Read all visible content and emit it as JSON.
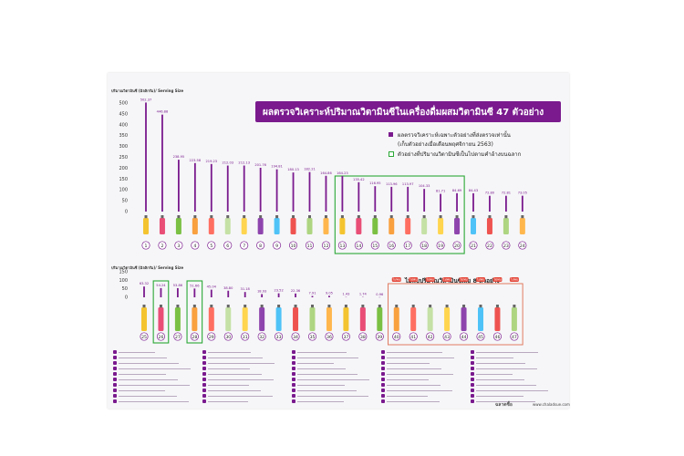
{
  "chart_data": [
    {
      "type": "bar",
      "ylabel": "ปริมาณวิตามินซี (มิลลิกรัม)/ Serving Size",
      "ylim": [
        0,
        500
      ],
      "yticks": [
        0,
        50,
        100,
        150,
        200,
        250,
        300,
        350,
        400,
        450,
        500
      ],
      "categories": [
        "1",
        "2",
        "3",
        "4",
        "5",
        "6",
        "7",
        "8",
        "9",
        "10",
        "11",
        "12",
        "13",
        "14",
        "15",
        "16",
        "17",
        "18",
        "19",
        "20",
        "21",
        "22",
        "23",
        "24"
      ],
      "values": [
        502.37,
        446.88,
        238.95,
        223.58,
        219.23,
        212.03,
        212.13,
        201.76,
        194.81,
        180.13,
        182.21,
        164.86,
        164.23,
        135.42,
        116.95,
        113.96,
        113.97,
        104.33,
        81.71,
        84.69,
        84.43,
        72.8,
        72.81,
        73.05
      ],
      "value_labels": [
        "502.37",
        "446.88",
        "238.95",
        "223.58",
        "219.23",
        "212.03",
        "212.13",
        "201.76",
        "194.81",
        "180.13",
        "182.21",
        "164.86",
        "164.23",
        "135.42",
        "116.95",
        "113.96",
        "113.97",
        "104.33",
        "81.71",
        "84.69",
        "84.43",
        "72.80",
        "72.81",
        "73.05"
      ],
      "highlighted": [
        "13",
        "14",
        "15",
        "16",
        "17",
        "18",
        "19",
        "20"
      ]
    },
    {
      "type": "bar",
      "ylabel": "ปริมาณวิตามินซี (มิลลิกรัม)/ Serving Size",
      "ylim": [
        0,
        150
      ],
      "yticks": [
        0,
        50,
        100,
        150
      ],
      "categories": [
        "25",
        "26",
        "27",
        "28",
        "29",
        "30",
        "31",
        "32",
        "33",
        "34",
        "35",
        "36",
        "37",
        "38",
        "39",
        "40",
        "41",
        "42",
        "43",
        "44",
        "45",
        "46",
        "47"
      ],
      "values": [
        63.32,
        54.24,
        53.86,
        51.66,
        45.04,
        38.8,
        31.18,
        18.93,
        23.52,
        22.36,
        7.91,
        9.05,
        1.43,
        1.74,
        0.96,
        0,
        0,
        0,
        0,
        0,
        0,
        0,
        0
      ],
      "value_labels": [
        "63.32",
        "54.24",
        "53.86",
        "51.66",
        "45.04",
        "38.80",
        "31.18",
        "18.93",
        "23.52",
        "22.36",
        "7.91",
        "9.05",
        "1.43",
        "1.74",
        "0.96",
        "ไม่พบ",
        "ไม่พบ",
        "ไม่พบ",
        "ไม่พบ",
        "ไม่พบ",
        "ไม่พบ",
        "ไม่พบ",
        "ไม่พบ"
      ],
      "highlighted": [
        "26",
        "28"
      ]
    }
  ],
  "header": {
    "ylabel_top": "ปริมาณวิตามินซี (มิลลิกรัม)/ Serving Size",
    "ylabel_bottom": "ปริมาณวิตามินซี (มิลลิกรัม)/ Serving Size",
    "title": "ผลตรวจวิเคราะห์ปริมาณวิตามินซีในเครื่องดื่มผสมวิตามินซี 47 ตัวอย่าง"
  },
  "legend": {
    "item1_line1": "ผลตรวจวิเคราะห์เฉพาะตัวอย่างที่ส่งตรวจเท่านั้น",
    "item1_line2": "(เก็บตัวอย่างเมื่อเดือนพฤศจิกายน 2563)",
    "item2": "ตัวอย่างที่ปริมาณวิตามินซีเป็นไปตามคำอ้างบนฉลาก"
  },
  "no_vitamin_title": "ไม่พบปริมาณวิตามินซีเลย 8 ตัวอย่าง",
  "footer": {
    "brand": "ฉลาดซื้อ",
    "url": "www.chaladsue.com"
  },
  "colors": {
    "bar": "#7a1a8e",
    "highlight": "#2aa836",
    "nomark": "#e07a5f",
    "notfound_badge": "#e4473a"
  }
}
